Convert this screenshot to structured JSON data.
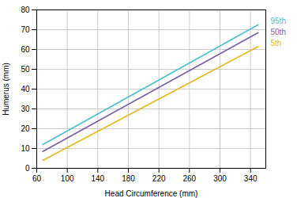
{
  "chart_data": {
    "type": "line",
    "xlabel": "Head Circumference (mm)",
    "ylabel": "Humerus (mm)",
    "x": [
      68,
      350
    ],
    "series": [
      {
        "name": "95th",
        "color": "#4BBFCE",
        "values": [
          12.0,
          72.5
        ]
      },
      {
        "name": "50th",
        "color": "#7B5EA7",
        "values": [
          8.5,
          68.5
        ]
      },
      {
        "name": "5th",
        "color": "#E6B820",
        "values": [
          4.0,
          61.5
        ]
      }
    ],
    "xlim": [
      60,
      360
    ],
    "ylim": [
      0,
      80
    ],
    "xticks": [
      60,
      100,
      140,
      180,
      220,
      260,
      300,
      340
    ],
    "yticks": [
      0,
      10,
      20,
      30,
      40,
      50,
      60,
      70,
      80
    ],
    "grid": true,
    "legend": "right"
  }
}
